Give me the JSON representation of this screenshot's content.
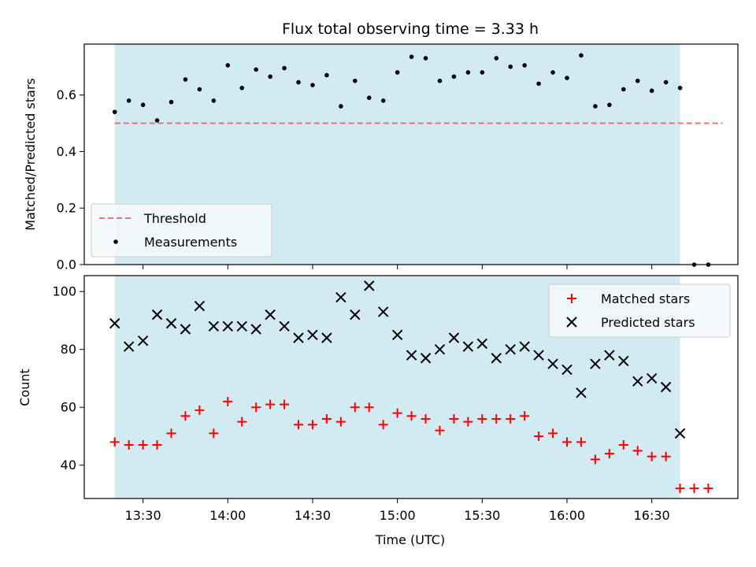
{
  "colors": {
    "span": "#add8e6",
    "threshold": "#f07070",
    "matched": "#ff0000",
    "predicted": "#000000",
    "measurement": "#000000"
  },
  "chart_data": [
    {
      "type": "scatter",
      "title": "Flux total observing time = 3.33 h",
      "ylabel": "Matched/Predicted stars",
      "xlabel": "",
      "ylim": [
        0,
        0.78
      ],
      "yticks": [
        {
          "value": 0.0,
          "label": "0.0"
        },
        {
          "value": 0.2,
          "label": "0.2"
        },
        {
          "value": 0.4,
          "label": "0.4"
        },
        {
          "value": 0.6,
          "label": "0.6"
        }
      ],
      "threshold": {
        "label": "Threshold",
        "value": 0.5,
        "x_start": "13:20",
        "x_end": "16:55"
      },
      "observing_span": {
        "start": "13:20",
        "end": "16:40"
      },
      "legend": {
        "position": "lower-left",
        "entries": [
          "Threshold",
          "Measurements"
        ]
      },
      "series": [
        {
          "name": "Measurements",
          "marker": "dot",
          "x": [
            "13:20",
            "13:25",
            "13:30",
            "13:35",
            "13:40",
            "13:45",
            "13:50",
            "13:55",
            "14:00",
            "14:05",
            "14:10",
            "14:15",
            "14:20",
            "14:25",
            "14:30",
            "14:35",
            "14:40",
            "14:45",
            "14:50",
            "14:55",
            "15:00",
            "15:05",
            "15:10",
            "15:15",
            "15:20",
            "15:25",
            "15:30",
            "15:35",
            "15:40",
            "15:45",
            "15:50",
            "15:55",
            "16:00",
            "16:05",
            "16:10",
            "16:15",
            "16:20",
            "16:25",
            "16:30",
            "16:35",
            "16:40",
            "16:45",
            "16:50"
          ],
          "y": [
            0.54,
            0.58,
            0.565,
            0.51,
            0.575,
            0.655,
            0.62,
            0.58,
            0.705,
            0.625,
            0.69,
            0.665,
            0.695,
            0.645,
            0.635,
            0.67,
            0.56,
            0.65,
            0.59,
            0.58,
            0.68,
            0.735,
            0.73,
            0.65,
            0.665,
            0.68,
            0.68,
            0.73,
            0.7,
            0.705,
            0.64,
            0.68,
            0.66,
            0.74,
            0.56,
            0.565,
            0.62,
            0.65,
            0.615,
            0.645,
            0.625,
            0.0,
            0.0
          ]
        }
      ]
    },
    {
      "type": "scatter",
      "title": "",
      "ylabel": "Count",
      "xlabel": "Time (UTC)",
      "ylim": [
        28.5,
        105.5
      ],
      "yticks": [
        {
          "value": 40,
          "label": "40"
        },
        {
          "value": 60,
          "label": "60"
        },
        {
          "value": 80,
          "label": "80"
        },
        {
          "value": 100,
          "label": "100"
        }
      ],
      "xticks": [
        "13:30",
        "14:00",
        "14:30",
        "15:00",
        "15:30",
        "16:00",
        "16:30"
      ],
      "observing_span": {
        "start": "13:20",
        "end": "16:40"
      },
      "legend": {
        "position": "top-right",
        "entries": [
          "Matched stars",
          "Predicted stars"
        ]
      },
      "series": [
        {
          "name": "Matched stars",
          "marker": "plus",
          "x": [
            "13:20",
            "13:25",
            "13:30",
            "13:35",
            "13:40",
            "13:45",
            "13:50",
            "13:55",
            "14:00",
            "14:05",
            "14:10",
            "14:15",
            "14:20",
            "14:25",
            "14:30",
            "14:35",
            "14:40",
            "14:45",
            "14:50",
            "14:55",
            "15:00",
            "15:05",
            "15:10",
            "15:15",
            "15:20",
            "15:25",
            "15:30",
            "15:35",
            "15:40",
            "15:45",
            "15:50",
            "15:55",
            "16:00",
            "16:05",
            "16:10",
            "16:15",
            "16:20",
            "16:25",
            "16:30",
            "16:35",
            "16:40",
            "16:45",
            "16:50"
          ],
          "y": [
            48,
            47,
            47,
            47,
            51,
            57,
            59,
            51,
            62,
            55,
            60,
            61,
            61,
            54,
            54,
            56,
            55,
            60,
            60,
            54,
            58,
            57,
            56,
            52,
            56,
            55,
            56,
            56,
            56,
            57,
            50,
            51,
            48,
            48,
            42,
            44,
            47,
            45,
            43,
            43,
            32,
            32,
            32
          ]
        },
        {
          "name": "Predicted stars",
          "marker": "x",
          "x": [
            "13:20",
            "13:25",
            "13:30",
            "13:35",
            "13:40",
            "13:45",
            "13:50",
            "13:55",
            "14:00",
            "14:05",
            "14:10",
            "14:15",
            "14:20",
            "14:25",
            "14:30",
            "14:35",
            "14:40",
            "14:45",
            "14:50",
            "14:55",
            "15:00",
            "15:05",
            "15:10",
            "15:15",
            "15:20",
            "15:25",
            "15:30",
            "15:35",
            "15:40",
            "15:45",
            "15:50",
            "15:55",
            "16:00",
            "16:05",
            "16:10",
            "16:15",
            "16:20",
            "16:25",
            "16:30",
            "16:35",
            "16:40"
          ],
          "y": [
            89,
            81,
            83,
            92,
            89,
            87,
            95,
            88,
            88,
            88,
            87,
            92,
            88,
            84,
            85,
            84,
            98,
            92,
            102,
            93,
            85,
            78,
            77,
            80,
            84,
            81,
            82,
            77,
            80,
            81,
            78,
            75,
            73,
            65,
            75,
            78,
            76,
            69,
            70,
            67,
            51
          ]
        }
      ]
    }
  ]
}
